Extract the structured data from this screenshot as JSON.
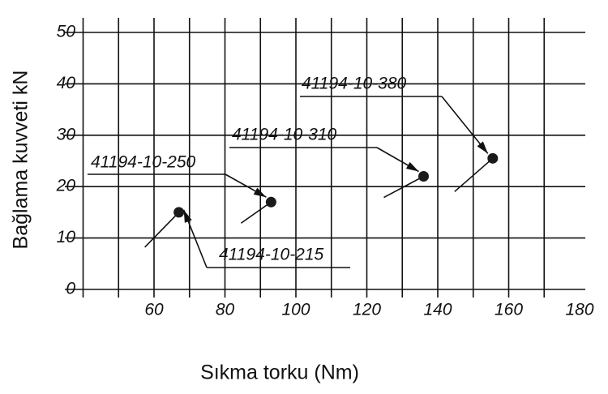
{
  "chart_data": {
    "type": "scatter",
    "x_label": "Sıkma torku (Nm)",
    "y_label": "Bağlama kuvveti kN",
    "xlim": [
      40,
      180
    ],
    "ylim": [
      0,
      50
    ],
    "xticks": [
      60,
      80,
      100,
      120,
      140,
      160,
      180
    ],
    "yticks": [
      0,
      10,
      20,
      30,
      40,
      50
    ],
    "grid": true,
    "color": "#1a1a1a",
    "x": [
      67,
      93,
      136,
      155.5
    ],
    "values": [
      15,
      17,
      22,
      25.5
    ],
    "point_labels": [
      "41194-10-215",
      "41194-10-250",
      "41194-10-310",
      "41194-10-380"
    ]
  }
}
